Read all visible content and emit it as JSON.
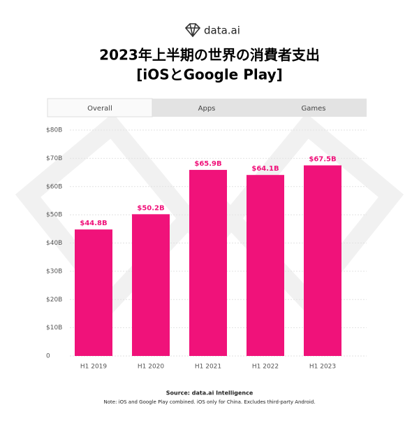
{
  "brand": "data.ai",
  "chart_data": {
    "type": "bar",
    "title": "2023年上半期の世界の消費者支出",
    "subtitle": "[iOSとGoogle Play]",
    "tabs": [
      "Overall",
      "Apps",
      "Games"
    ],
    "categories": [
      "H1 2019",
      "H1 2020",
      "H1 2021",
      "H1 2022",
      "H1 2023"
    ],
    "values": [
      44.8,
      50.2,
      65.9,
      64.1,
      67.5
    ],
    "value_labels": [
      "$44.8B",
      "$50.2B",
      "$65.9B",
      "$64.1B",
      "$67.5B"
    ],
    "color": "#f0127a",
    "ylim": [
      0,
      80
    ],
    "yticks": [
      0,
      {
        "value": 10,
        "label": "$10B"
      },
      {
        "value": 20,
        "label": "$20B"
      },
      {
        "value": 30,
        "label": "$30B"
      },
      {
        "value": 40,
        "label": "$40B"
      },
      {
        "value": 50,
        "label": "$50B"
      },
      {
        "value": 60,
        "label": "$60B"
      },
      {
        "value": 70,
        "label": "$70B"
      },
      {
        "value": 80,
        "label": "$80B"
      }
    ],
    "grid": true,
    "source": "Source: data.ai Intelligence",
    "note": "Note: iOS and Google Play combined. iOS only for China. Excludes third-party Android."
  }
}
